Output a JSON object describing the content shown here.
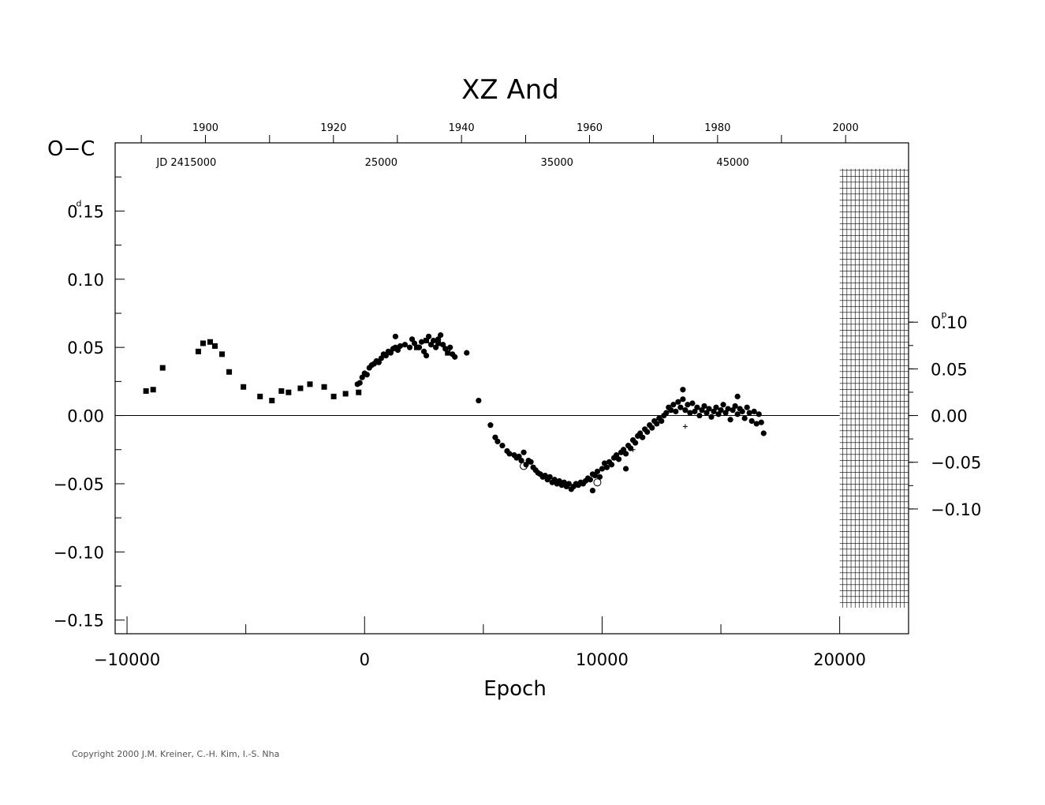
{
  "chart_data": {
    "type": "scatter",
    "title": "XZ And",
    "xlabel": "Epoch",
    "ylabel": "O−C",
    "xlim": [
      -10500,
      22900
    ],
    "ylim": [
      -0.16,
      0.2
    ],
    "x_ticks": [
      -10000,
      0,
      10000,
      20000
    ],
    "x_tick_labels": [
      "−10000",
      "0",
      "10000",
      "20000"
    ],
    "y_ticks": [
      0.15,
      0.1,
      0.05,
      0.0,
      -0.05,
      -0.1,
      -0.15
    ],
    "y_tick_labels": [
      "0.15",
      "0.10",
      "0.05",
      "0.00",
      "−0.05",
      "−0.10",
      "−0.15"
    ],
    "y_first_label_unit": "d",
    "right_axis": {
      "ticks_days": [
        0.0685,
        0.03425,
        0.0,
        -0.03425,
        -0.0685
      ],
      "tick_labels": [
        "0.10",
        "0.05",
        "0.00",
        "−0.05",
        "−0.10"
      ],
      "first_label_unit": "p"
    },
    "top_axis_years": {
      "labels": [
        "1900",
        "1920",
        "1940",
        "1960",
        "1980",
        "2000"
      ],
      "label_epochs": [
        -6700,
        -1310,
        4080,
        9470,
        14860,
        20250
      ],
      "tick_epochs": [
        -9400,
        -6700,
        -4000,
        -1310,
        1380,
        4080,
        6780,
        9470,
        12160,
        14860,
        17550,
        20250
      ]
    },
    "jd_labels": {
      "labels": [
        "JD  2415000",
        "25000",
        "35000",
        "45000"
      ],
      "label_epochs": [
        -7500,
        700,
        8100,
        15500
      ]
    },
    "hatched_region": {
      "x_from": 20000,
      "x_to": 22900,
      "y_from": -0.141,
      "y_to": 0.181
    },
    "zero_line": 0,
    "series": [
      {
        "marker": "square",
        "points": [
          [
            -9200,
            0.018
          ],
          [
            -8900,
            0.019
          ],
          [
            -8500,
            0.035
          ],
          [
            -7000,
            0.047
          ],
          [
            -6800,
            0.053
          ],
          [
            -6500,
            0.054
          ],
          [
            -6300,
            0.051
          ],
          [
            -6000,
            0.045
          ],
          [
            -5700,
            0.032
          ],
          [
            -5100,
            0.021
          ],
          [
            -4400,
            0.014
          ],
          [
            -3900,
            0.011
          ],
          [
            -3500,
            0.018
          ],
          [
            -3200,
            0.017
          ],
          [
            -2700,
            0.02
          ],
          [
            -2300,
            0.023
          ],
          [
            -1700,
            0.021
          ],
          [
            -1300,
            0.014
          ],
          [
            -800,
            0.016
          ],
          [
            -250,
            0.017
          ],
          [
            2200,
            0.05
          ],
          [
            2600,
            0.055
          ],
          [
            3100,
            0.053
          ],
          [
            3500,
            0.046
          ]
        ]
      },
      {
        "marker": "circle",
        "points": [
          [
            -300,
            0.023
          ],
          [
            -200,
            0.024
          ],
          [
            -100,
            0.028
          ],
          [
            0,
            0.031
          ],
          [
            100,
            0.03
          ],
          [
            200,
            0.035
          ],
          [
            300,
            0.037
          ],
          [
            400,
            0.038
          ],
          [
            500,
            0.04
          ],
          [
            600,
            0.039
          ],
          [
            700,
            0.042
          ],
          [
            800,
            0.045
          ],
          [
            900,
            0.044
          ],
          [
            1000,
            0.047
          ],
          [
            1100,
            0.046
          ],
          [
            1200,
            0.049
          ],
          [
            1300,
            0.05
          ],
          [
            1400,
            0.048
          ],
          [
            1500,
            0.051
          ],
          [
            1300,
            0.058
          ],
          [
            1700,
            0.052
          ],
          [
            1900,
            0.05
          ],
          [
            2000,
            0.056
          ],
          [
            2100,
            0.053
          ],
          [
            2300,
            0.05
          ],
          [
            2400,
            0.054
          ],
          [
            2500,
            0.047
          ],
          [
            2700,
            0.058
          ],
          [
            2800,
            0.052
          ],
          [
            2900,
            0.055
          ],
          [
            3000,
            0.05
          ],
          [
            3100,
            0.056
          ],
          [
            3200,
            0.059
          ],
          [
            3300,
            0.052
          ],
          [
            3400,
            0.049
          ],
          [
            3600,
            0.05
          ],
          [
            3700,
            0.045
          ],
          [
            3800,
            0.043
          ],
          [
            4300,
            0.046
          ],
          [
            4800,
            0.011
          ],
          [
            5300,
            -0.007
          ],
          [
            5500,
            -0.016
          ],
          [
            5600,
            -0.019
          ],
          [
            5800,
            -0.022
          ],
          [
            6000,
            -0.026
          ],
          [
            6100,
            -0.028
          ],
          [
            6300,
            -0.029
          ],
          [
            6400,
            -0.031
          ],
          [
            6500,
            -0.03
          ],
          [
            6600,
            -0.033
          ],
          [
            6700,
            -0.027
          ],
          [
            6800,
            -0.036
          ],
          [
            6900,
            -0.033
          ],
          [
            7000,
            -0.034
          ],
          [
            7100,
            -0.038
          ],
          [
            7200,
            -0.04
          ],
          [
            7300,
            -0.042
          ],
          [
            7400,
            -0.043
          ],
          [
            7500,
            -0.045
          ],
          [
            7600,
            -0.044
          ],
          [
            7700,
            -0.047
          ],
          [
            7800,
            -0.045
          ],
          [
            7900,
            -0.049
          ],
          [
            8000,
            -0.047
          ],
          [
            8100,
            -0.05
          ],
          [
            8200,
            -0.048
          ],
          [
            8300,
            -0.051
          ],
          [
            8400,
            -0.049
          ],
          [
            8500,
            -0.052
          ],
          [
            8600,
            -0.05
          ],
          [
            8700,
            -0.054
          ],
          [
            8800,
            -0.052
          ],
          [
            8900,
            -0.05
          ],
          [
            9000,
            -0.051
          ],
          [
            9100,
            -0.049
          ],
          [
            9200,
            -0.05
          ],
          [
            9300,
            -0.048
          ],
          [
            9400,
            -0.046
          ],
          [
            9500,
            -0.047
          ],
          [
            9600,
            -0.043
          ],
          [
            9700,
            -0.044
          ],
          [
            9800,
            -0.041
          ],
          [
            9900,
            -0.045
          ],
          [
            10000,
            -0.039
          ],
          [
            10100,
            -0.035
          ],
          [
            10200,
            -0.038
          ],
          [
            10300,
            -0.034
          ],
          [
            10400,
            -0.036
          ],
          [
            10500,
            -0.031
          ],
          [
            10600,
            -0.029
          ],
          [
            10700,
            -0.032
          ],
          [
            10800,
            -0.027
          ],
          [
            10900,
            -0.025
          ],
          [
            11000,
            -0.028
          ],
          [
            11100,
            -0.022
          ],
          [
            11200,
            -0.024
          ],
          [
            11300,
            -0.018
          ],
          [
            11400,
            -0.02
          ],
          [
            11500,
            -0.015
          ],
          [
            11600,
            -0.013
          ],
          [
            11700,
            -0.016
          ],
          [
            11800,
            -0.01
          ],
          [
            11900,
            -0.012
          ],
          [
            12000,
            -0.007
          ],
          [
            12100,
            -0.009
          ],
          [
            12200,
            -0.004
          ],
          [
            12300,
            -0.006
          ],
          [
            12400,
            -0.002
          ],
          [
            12500,
            -0.004
          ],
          [
            12600,
            0.0
          ],
          [
            12700,
            0.002
          ],
          [
            12800,
            0.006
          ],
          [
            12900,
            0.004
          ],
          [
            13000,
            0.008
          ],
          [
            13100,
            0.003
          ],
          [
            13200,
            0.01
          ],
          [
            13300,
            0.006
          ],
          [
            13400,
            0.012
          ],
          [
            13500,
            0.004
          ],
          [
            13600,
            0.008
          ],
          [
            13700,
            0.002
          ],
          [
            13800,
            0.009
          ],
          [
            13900,
            0.003
          ],
          [
            14000,
            0.006
          ],
          [
            14100,
            0.0
          ],
          [
            14200,
            0.004
          ],
          [
            14300,
            0.007
          ],
          [
            14400,
            0.002
          ],
          [
            14500,
            0.005
          ],
          [
            14600,
            -0.001
          ],
          [
            14700,
            0.003
          ],
          [
            14800,
            0.006
          ],
          [
            14900,
            0.001
          ],
          [
            15000,
            0.004
          ],
          [
            15100,
            0.008
          ],
          [
            15200,
            0.002
          ],
          [
            15300,
            0.005
          ],
          [
            15400,
            -0.003
          ],
          [
            15500,
            0.004
          ],
          [
            15600,
            0.007
          ],
          [
            15700,
            0.001
          ],
          [
            15800,
            0.005
          ],
          [
            15900,
            0.003
          ],
          [
            16000,
            -0.002
          ],
          [
            16100,
            0.006
          ],
          [
            16200,
            0.002
          ],
          [
            16300,
            -0.004
          ],
          [
            16400,
            0.003
          ],
          [
            16500,
            -0.006
          ],
          [
            16600,
            0.001
          ],
          [
            16700,
            -0.005
          ],
          [
            16800,
            -0.013
          ],
          [
            2600,
            0.044
          ],
          [
            9600,
            -0.055
          ],
          [
            11000,
            -0.039
          ],
          [
            13400,
            0.019
          ],
          [
            15700,
            0.014
          ]
        ]
      },
      {
        "marker": "open-circle",
        "points": [
          [
            6700,
            -0.037
          ],
          [
            9800,
            -0.049
          ]
        ]
      },
      {
        "marker": "plus",
        "points": [
          [
            13500,
            -0.008
          ],
          [
            11300,
            -0.025
          ]
        ]
      }
    ]
  },
  "copyright": "Copyright 2000 J.M. Kreiner, C.-H. Kim, I.-S. Nha"
}
